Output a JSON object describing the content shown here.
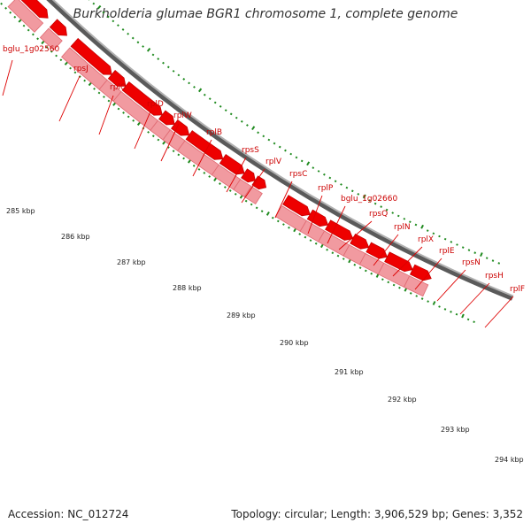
{
  "title": "Burkholderia glumae BGR1 chromosome 1, complete genome",
  "footer": {
    "accession": "Accession: NC_012724",
    "topology": "Topology: circular; Length: 3,906,529 bp; Genes: 3,352"
  },
  "colors": {
    "gene_bar": "#f19aa0",
    "gene_arrow": "#ee0000",
    "label_line": "#dd0000",
    "label_text": "#cc0000",
    "tick": "#1e8a1e",
    "backbone": "#8a8a8a"
  },
  "genes": [
    {
      "name": "bglu_1g02560"
    },
    {
      "name": "rpsJ"
    },
    {
      "name": "rplC"
    },
    {
      "name": "rplD"
    },
    {
      "name": "rplW"
    },
    {
      "name": "rplB"
    },
    {
      "name": "rpsS"
    },
    {
      "name": "rplV"
    },
    {
      "name": "rpsC"
    },
    {
      "name": "rplP"
    },
    {
      "name": "bglu_1g02660"
    },
    {
      "name": "rpsQ"
    },
    {
      "name": "rplN"
    },
    {
      "name": "rplX"
    },
    {
      "name": "rplE"
    },
    {
      "name": "rpsN"
    },
    {
      "name": "rpsH"
    },
    {
      "name": "rplF"
    }
  ],
  "scale": {
    "unit": "kbp",
    "labels": [
      "285 kbp",
      "286 kbp",
      "287 kbp",
      "288 kbp",
      "289 kbp",
      "290 kbp",
      "291 kbp",
      "292 kbp",
      "293 kbp",
      "294 kbp"
    ]
  }
}
